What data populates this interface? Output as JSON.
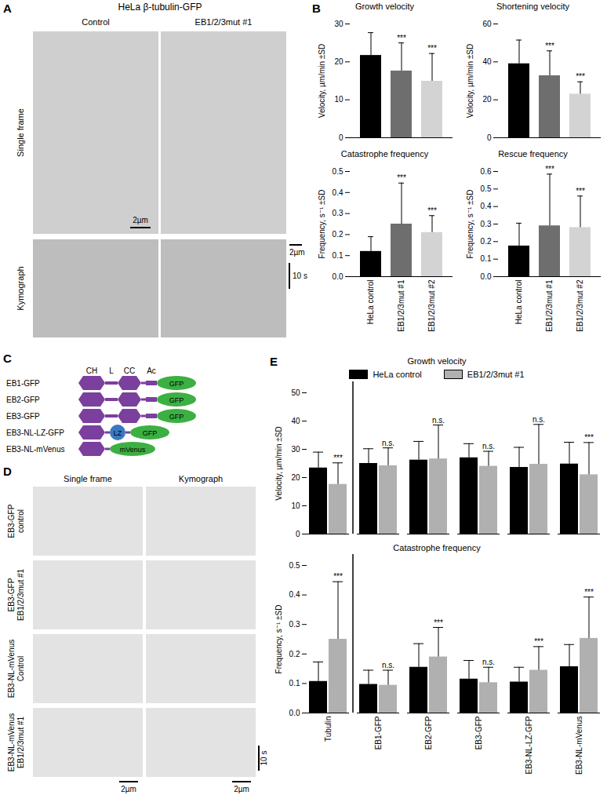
{
  "panel_labels": [
    "A",
    "B",
    "C",
    "D",
    "E"
  ],
  "panel_a": {
    "title": "HeLa β-tubulin-GFP",
    "columns": [
      "Control",
      "EB1/2/3mut #1"
    ],
    "rows": [
      "Single frame",
      "Kymograph"
    ],
    "scale_bar_space": "2µm",
    "scale_bar_time": "10 s"
  },
  "panel_c": {
    "domain_labels": [
      "CH",
      "L",
      "CC",
      "Ac"
    ],
    "constructs": [
      {
        "name": "EB1-GFP",
        "parts": [
          "CH",
          "L",
          "CC",
          "Ac",
          "GFP"
        ]
      },
      {
        "name": "EB2-GFP",
        "parts": [
          "CH",
          "L",
          "CC",
          "Ac",
          "GFP"
        ]
      },
      {
        "name": "EB3-GFP",
        "parts": [
          "CH",
          "L",
          "CC",
          "Ac",
          "GFP"
        ]
      },
      {
        "name": "EB3-NL-LZ-GFP",
        "parts": [
          "CH",
          "LZ",
          "GFP"
        ]
      },
      {
        "name": "EB3-NL-mVenus",
        "parts": [
          "CH",
          "mVenus"
        ]
      }
    ]
  },
  "panel_d": {
    "columns": [
      "Single frame",
      "Kymograph"
    ],
    "rows": [
      [
        "EB3-GFP",
        "control"
      ],
      [
        "EB3-GFP",
        "EB1/2/3mut #1"
      ],
      [
        "EB3-NL-mVenus",
        "Control"
      ],
      [
        "EB3-NL-mVenus",
        "EB1/2/3mut #1"
      ]
    ],
    "scale_bar_space": "2µm",
    "scale_bar_time": "10 s"
  },
  "chart_data": [
    {
      "type": "bar",
      "title": "Growth velocity",
      "categories": [
        "HeLa control",
        "EB1/2/3mut #1",
        "EB1/2/3mut #2"
      ],
      "values": [
        21.7,
        17.6,
        14.9
      ],
      "errors": [
        6.0,
        7.4,
        7.3
      ],
      "annotations": [
        null,
        "***",
        "***"
      ],
      "colors": [
        "#000000",
        "#6e6e6e",
        "#d3d3d3"
      ],
      "ylabel": "Velocity, µm/min ±SD",
      "ylim": [
        0,
        30
      ],
      "yticks": [
        0,
        10,
        20,
        30
      ],
      "tick_labels": "y"
    },
    {
      "type": "bar",
      "title": "Shortening velocity",
      "categories": [
        "HeLa control",
        "EB1/2/3mut #1",
        "EB1/2/3mut #2"
      ],
      "values": [
        39.0,
        32.7,
        23.0
      ],
      "errors": [
        12.5,
        13.1,
        6.5
      ],
      "annotations": [
        null,
        "***",
        "***"
      ],
      "colors": [
        "#000000",
        "#6e6e6e",
        "#d3d3d3"
      ],
      "ylabel": "Velocity, µm/min ±SD",
      "ylim": [
        0,
        60
      ],
      "yticks": [
        0,
        20,
        40,
        60
      ],
      "tick_labels": "y"
    },
    {
      "type": "bar",
      "title": "Catastrophe frequency",
      "categories": [
        "HeLa control",
        "EB1/2/3mut #1",
        "EB1/2/3mut #2"
      ],
      "values": [
        0.12,
        0.25,
        0.21
      ],
      "errors": [
        0.07,
        0.195,
        0.08
      ],
      "annotations": [
        null,
        "***",
        "***"
      ],
      "colors": [
        "#000000",
        "#6e6e6e",
        "#d3d3d3"
      ],
      "ylabel": "Frequency, s⁻¹ ±SD",
      "ylim": [
        0,
        0.5
      ],
      "yticks": [
        {
          "value": 0,
          "label": "0.0"
        },
        {
          "value": 0.1,
          "label": "0.1"
        },
        {
          "value": 0.2,
          "label": "0.2"
        },
        {
          "value": 0.3,
          "label": "0.3"
        },
        {
          "value": 0.4,
          "label": "0.4"
        },
        {
          "value": 0.5,
          "label": "0.5"
        }
      ]
    },
    {
      "type": "bar",
      "title": "Rescue frequency",
      "categories": [
        "HeLa control",
        "EB1/2/3mut #1",
        "EB1/2/3mut #2"
      ],
      "values": [
        0.175,
        0.29,
        0.28
      ],
      "errors": [
        0.13,
        0.295,
        0.18
      ],
      "annotations": [
        null,
        "***",
        "***"
      ],
      "colors": [
        "#000000",
        "#6e6e6e",
        "#d3d3d3"
      ],
      "ylabel": "Frequency, s⁻¹ ±SD",
      "ylim": [
        0,
        0.6
      ],
      "yticks": [
        {
          "value": 0,
          "label": "0.0"
        },
        {
          "value": 0.1,
          "label": "0.1"
        },
        {
          "value": 0.2,
          "label": "0.2"
        },
        {
          "value": 0.3,
          "label": "0.3"
        },
        {
          "value": 0.4,
          "label": "0.4"
        },
        {
          "value": 0.5,
          "label": "0.5"
        },
        {
          "value": 0.6,
          "label": "0.6"
        }
      ]
    },
    {
      "type": "bar",
      "title": "Growth velocity",
      "categories": [
        "Tubulin",
        "EB1-GFP",
        "EB2-GFP",
        "EB3-GFP",
        "EB3-NL-LZ-GFP",
        "EB3-NL-mVenus"
      ],
      "series": [
        {
          "name": "HeLa control",
          "color": "#000000",
          "values": [
            23.4,
            25.0,
            26.2,
            27.0,
            23.6,
            24.8
          ],
          "errors": [
            5.6,
            5.2,
            6.6,
            5.0,
            7.1,
            7.7
          ]
        },
        {
          "name": "EB1/2/3mut #1",
          "color": "#b0b0b0",
          "values": [
            17.6,
            24.2,
            26.6,
            24.0,
            24.7,
            21.0
          ],
          "errors": [
            7.6,
            6.3,
            12.0,
            5.3,
            14.1,
            11.4
          ],
          "annotations": [
            "***",
            "n.s.",
            "n.s.",
            "n.s.",
            "n.s.",
            "***"
          ]
        }
      ],
      "ylabel": "Velocity, µm/min ±SD",
      "ylim": [
        0,
        50
      ],
      "yticks": [
        0,
        10,
        20,
        30,
        40,
        50
      ],
      "legend": "top",
      "tick_labels": "y"
    },
    {
      "type": "bar",
      "title": "Catastrophe frequency",
      "categories": [
        "Tubulin",
        "EB1-GFP",
        "EB2-GFP",
        "EB3-GFP",
        "EB3-NL-LZ-GFP",
        "EB3-NL-mVenus"
      ],
      "series": [
        {
          "name": "HeLa control",
          "color": "#000000",
          "values": [
            0.107,
            0.097,
            0.155,
            0.115,
            0.105,
            0.157
          ],
          "errors": [
            0.066,
            0.048,
            0.08,
            0.063,
            0.05,
            0.075
          ]
        },
        {
          "name": "EB1/2/3mut #1",
          "color": "#b0b0b0",
          "values": [
            0.25,
            0.094,
            0.19,
            0.103,
            0.145,
            0.253
          ],
          "errors": [
            0.195,
            0.051,
            0.1,
            0.052,
            0.08,
            0.14
          ],
          "annotations": [
            "***",
            "n.s.",
            "***",
            "n.s.",
            "***",
            "***"
          ]
        }
      ],
      "ylabel": "Frequency, s⁻¹ ±SD",
      "ylim": [
        0,
        0.5
      ],
      "yticks": [
        {
          "value": 0,
          "label": "0.0"
        },
        {
          "value": 0.1,
          "label": "0.1"
        },
        {
          "value": 0.2,
          "label": "0.2"
        },
        {
          "value": 0.3,
          "label": "0.3"
        },
        {
          "value": 0.4,
          "label": "0.4"
        },
        {
          "value": 0.5,
          "label": "0.5"
        }
      ]
    }
  ]
}
